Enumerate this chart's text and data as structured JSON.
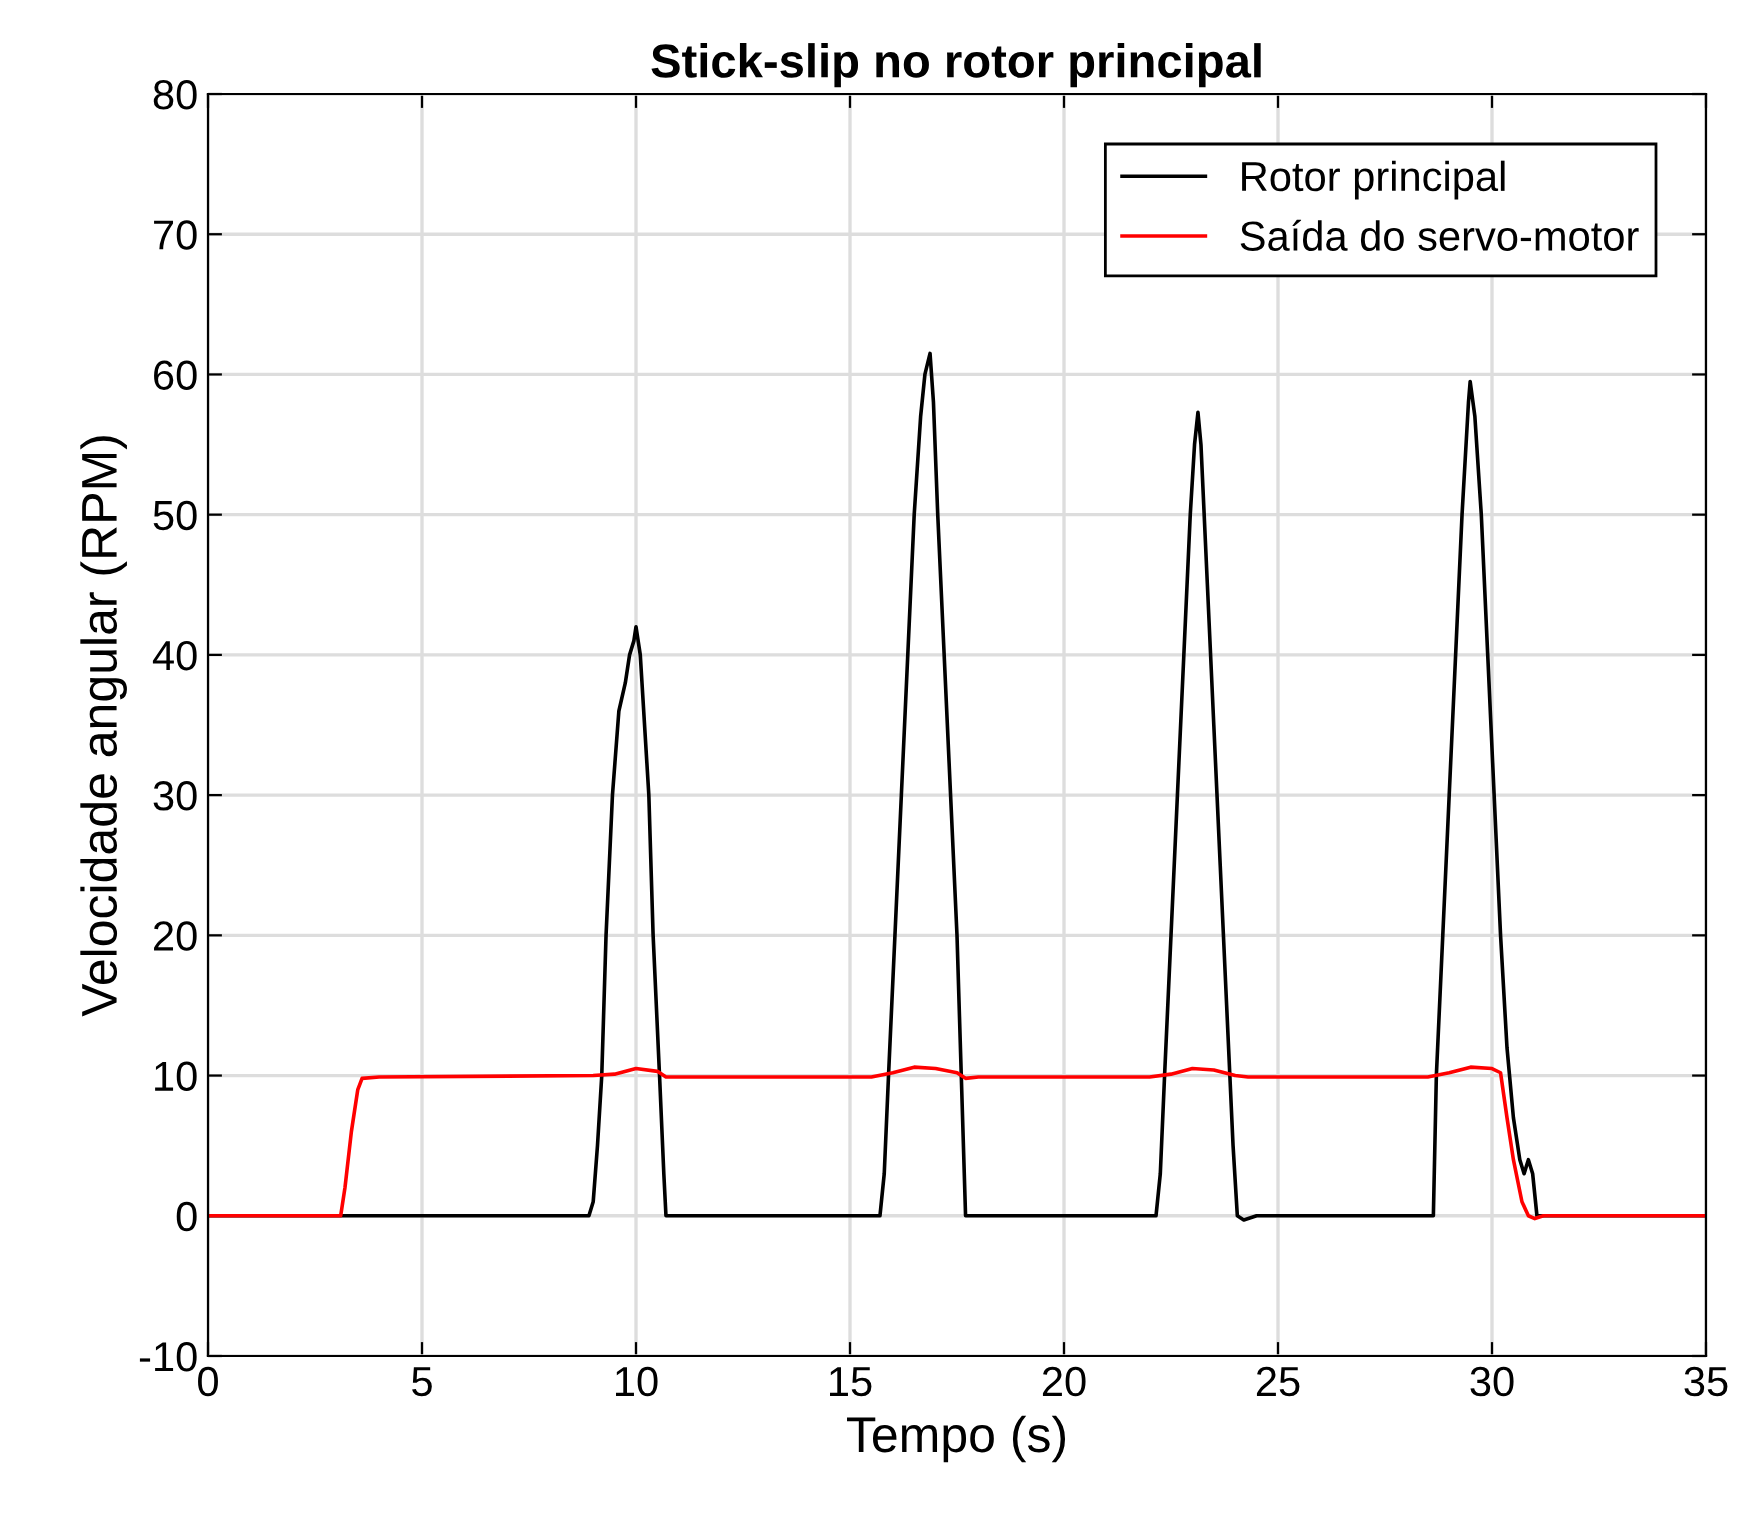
{
  "chart_data": {
    "type": "line",
    "title": "Stick-slip no rotor principal",
    "xlabel": "Tempo (s)",
    "ylabel": "Velocidade angular (RPM)",
    "xlim": [
      0,
      35
    ],
    "ylim": [
      -10,
      80
    ],
    "xticks": [
      0,
      5,
      10,
      15,
      20,
      25,
      30,
      35
    ],
    "yticks": [
      -10,
      0,
      10,
      20,
      30,
      40,
      50,
      60,
      70,
      80
    ],
    "grid": true,
    "legend": "top right",
    "series": [
      {
        "name": "Rotor principal",
        "color": "#000000",
        "x": [
          0,
          8.9,
          9.0,
          9.1,
          9.2,
          9.3,
          9.45,
          9.6,
          9.75,
          9.85,
          9.95,
          10.0,
          10.1,
          10.3,
          10.4,
          10.55,
          10.65,
          10.7,
          10.75,
          15.7,
          15.8,
          15.9,
          16.05,
          16.2,
          16.35,
          16.5,
          16.65,
          16.75,
          16.87,
          16.95,
          17.05,
          17.2,
          17.35,
          17.5,
          17.6,
          17.7,
          22.15,
          22.25,
          22.35,
          22.5,
          22.65,
          22.8,
          22.95,
          23.05,
          23.13,
          23.2,
          23.35,
          23.5,
          23.65,
          23.8,
          23.95,
          24.05,
          24.2,
          24.5,
          28.63,
          28.7,
          28.85,
          29.0,
          29.15,
          29.3,
          29.45,
          29.49,
          29.6,
          29.75,
          29.9,
          30.05,
          30.2,
          30.35,
          30.5,
          30.65,
          30.75,
          30.85,
          30.95,
          31.05,
          31.15,
          35
        ],
        "values": [
          0,
          0,
          1,
          5,
          10,
          20,
          30,
          36,
          38,
          40,
          41,
          42,
          40,
          30,
          20,
          10,
          3,
          0,
          0,
          0,
          3,
          10,
          20,
          30,
          40,
          50,
          57,
          60,
          61.5,
          58,
          50,
          40,
          30,
          20,
          10,
          0,
          0,
          3,
          10,
          20,
          30,
          40,
          50,
          55,
          57.3,
          55,
          45,
          35,
          25,
          15,
          5,
          0,
          -0.3,
          0,
          0,
          10,
          20,
          30,
          40,
          50,
          58,
          59.5,
          57,
          50,
          40,
          30,
          20,
          12,
          7,
          4,
          3,
          4,
          3,
          0,
          0,
          0
        ]
      },
      {
        "name": "Saída do servo-motor",
        "color": "#ff0000",
        "x": [
          0,
          3.1,
          3.2,
          3.35,
          3.5,
          3.6,
          4.0,
          9.0,
          9.5,
          10.0,
          10.5,
          10.7,
          11.0,
          15.5,
          16.0,
          16.5,
          17.0,
          17.5,
          17.7,
          18.0,
          22.0,
          22.5,
          23.0,
          23.5,
          24.0,
          24.3,
          28.5,
          29.0,
          29.5,
          30.0,
          30.2,
          30.35,
          30.5,
          30.7,
          30.85,
          31.0,
          31.2,
          35
        ],
        "values": [
          0,
          0,
          2,
          6,
          9,
          9.8,
          9.9,
          10,
          10.1,
          10.5,
          10.3,
          9.9,
          9.9,
          9.9,
          10.2,
          10.6,
          10.5,
          10.2,
          9.8,
          9.9,
          9.9,
          10.1,
          10.5,
          10.4,
          10,
          9.9,
          9.9,
          10.2,
          10.6,
          10.5,
          10.2,
          7,
          4,
          1,
          0,
          -0.2,
          0,
          0
        ]
      }
    ]
  }
}
